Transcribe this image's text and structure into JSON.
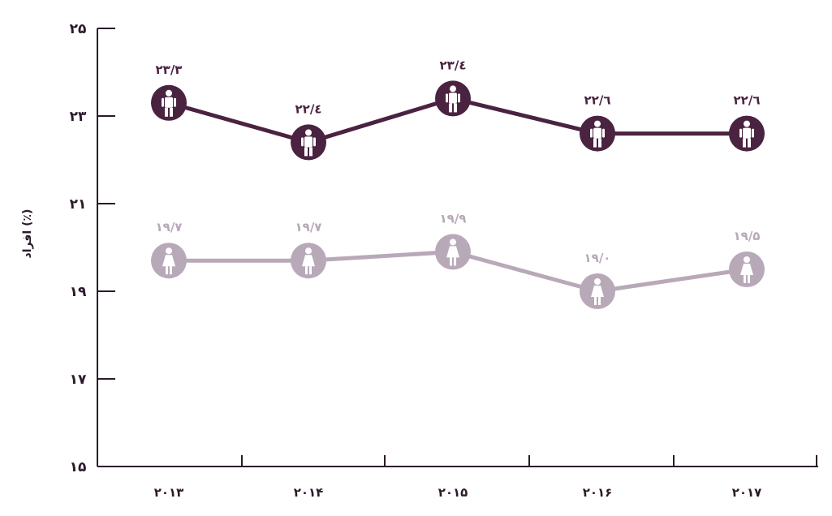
{
  "chart_data": {
    "type": "line",
    "ylabel": "افراد (٪)",
    "ylim": [
      15,
      25
    ],
    "yticks": [
      15,
      17,
      19,
      21,
      23,
      25
    ],
    "ytick_labels": [
      "۱۵",
      "۱۷",
      "۱۹",
      "۲۱",
      "۲۳",
      "۲۵"
    ],
    "categories": [
      "۲۰۱۳",
      "۲۰۱۴",
      "۲۰۱۵",
      "۲۰۱۶",
      "۲۰۱۷"
    ],
    "series": [
      {
        "icon": "male-person-icon",
        "color": "#4a2341",
        "values": [
          23.3,
          22.4,
          23.4,
          22.6,
          22.6
        ],
        "labels": [
          "۲۳/۳",
          "۲۲/٤",
          "۲۳/٤",
          "۲۲/٦",
          "۲۲/٦"
        ]
      },
      {
        "icon": "female-person-icon",
        "color": "#b8a9b9",
        "values": [
          19.7,
          19.7,
          19.9,
          19.0,
          19.5
        ],
        "labels": [
          "۱۹/۷",
          "۱۹/۷",
          "۱۹/۹",
          "۱۹/۰",
          "۱۹/۵"
        ]
      }
    ],
    "grid": false,
    "legend": "none"
  }
}
